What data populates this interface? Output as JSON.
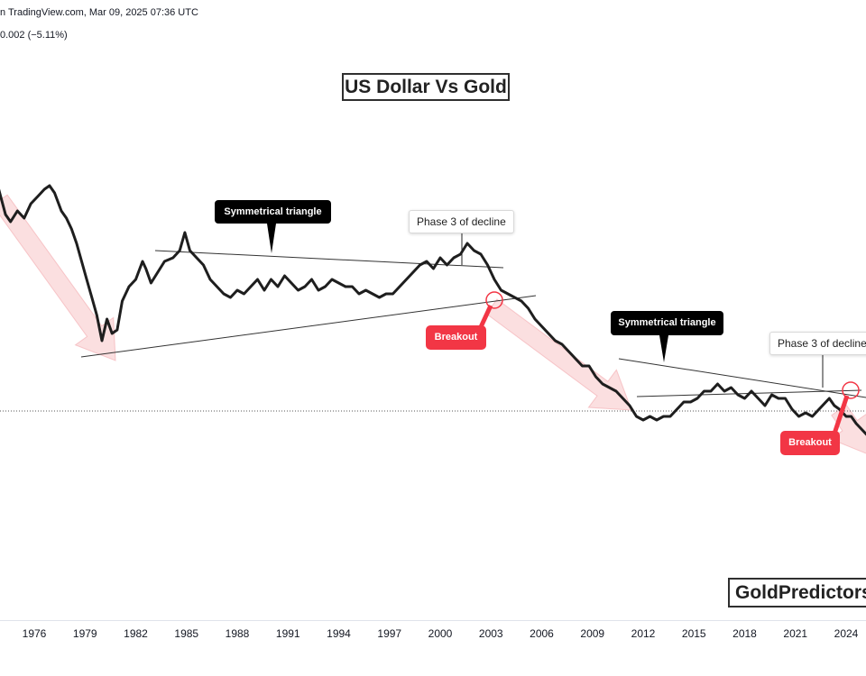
{
  "header": {
    "line1": "n TradingView.com, Mar 09, 2025 07:36 UTC",
    "line2": "0.002 (−5.11%)"
  },
  "title": "US Dollar Vs Gold",
  "brand": "GoldPredictors",
  "annotations": {
    "sym1": "Symmetrical triangle",
    "phase1": "Phase 3 of decline",
    "breakout1": "Breakout",
    "sym2": "Symmetrical triangle",
    "phase2": "Phase 3 of decline",
    "breakout2": "Breakout"
  },
  "colors": {
    "line": "#1e1e1e",
    "arrow": "#f7c5c7",
    "breakout": "#f23645",
    "callout_dark": "#000000",
    "trend": "#333333"
  },
  "chart_data": {
    "type": "line",
    "title": "US Dollar Vs Gold",
    "x_tick_labels": [
      "1976",
      "1979",
      "1982",
      "1985",
      "1988",
      "1991",
      "1994",
      "1997",
      "2000",
      "2003",
      "2006",
      "2009",
      "2012",
      "2015",
      "2018",
      "2021",
      "2024"
    ],
    "xlim": [
      1973.9,
      2025.2
    ],
    "ylim": [
      0,
      1
    ],
    "y_scale_note": "relative (price axis not visible)",
    "series": [
      {
        "values": [
          [
            1973.9,
            0.8
          ],
          [
            1974.3,
            0.73
          ],
          [
            1974.6,
            0.71
          ],
          [
            1975.0,
            0.74
          ],
          [
            1975.4,
            0.72
          ],
          [
            1975.8,
            0.76
          ],
          [
            1976.2,
            0.78
          ],
          [
            1976.6,
            0.8
          ],
          [
            1976.9,
            0.81
          ],
          [
            1977.2,
            0.79
          ],
          [
            1977.6,
            0.74
          ],
          [
            1977.9,
            0.72
          ],
          [
            1978.2,
            0.69
          ],
          [
            1978.5,
            0.65
          ],
          [
            1978.8,
            0.6
          ],
          [
            1979.1,
            0.55
          ],
          [
            1979.4,
            0.5
          ],
          [
            1979.7,
            0.45
          ],
          [
            1980.0,
            0.38
          ],
          [
            1980.3,
            0.44
          ],
          [
            1980.6,
            0.4
          ],
          [
            1980.9,
            0.41
          ],
          [
            1981.2,
            0.49
          ],
          [
            1981.6,
            0.53
          ],
          [
            1982.0,
            0.55
          ],
          [
            1982.4,
            0.6
          ],
          [
            1982.6,
            0.58
          ],
          [
            1982.9,
            0.54
          ],
          [
            1983.3,
            0.57
          ],
          [
            1983.7,
            0.6
          ],
          [
            1984.2,
            0.61
          ],
          [
            1984.6,
            0.63
          ],
          [
            1984.9,
            0.68
          ],
          [
            1985.2,
            0.63
          ],
          [
            1985.6,
            0.61
          ],
          [
            1986.0,
            0.59
          ],
          [
            1986.4,
            0.55
          ],
          [
            1986.8,
            0.53
          ],
          [
            1987.2,
            0.51
          ],
          [
            1987.6,
            0.5
          ],
          [
            1988.0,
            0.52
          ],
          [
            1988.4,
            0.51
          ],
          [
            1988.8,
            0.53
          ],
          [
            1989.2,
            0.55
          ],
          [
            1989.6,
            0.52
          ],
          [
            1990.0,
            0.55
          ],
          [
            1990.4,
            0.53
          ],
          [
            1990.8,
            0.56
          ],
          [
            1991.2,
            0.54
          ],
          [
            1991.6,
            0.52
          ],
          [
            1992.0,
            0.53
          ],
          [
            1992.4,
            0.55
          ],
          [
            1992.8,
            0.52
          ],
          [
            1993.2,
            0.53
          ],
          [
            1993.6,
            0.55
          ],
          [
            1994.0,
            0.54
          ],
          [
            1994.4,
            0.53
          ],
          [
            1994.8,
            0.53
          ],
          [
            1995.2,
            0.51
          ],
          [
            1995.6,
            0.52
          ],
          [
            1996.0,
            0.51
          ],
          [
            1996.4,
            0.5
          ],
          [
            1996.8,
            0.51
          ],
          [
            1997.2,
            0.51
          ],
          [
            1997.6,
            0.53
          ],
          [
            1998.0,
            0.55
          ],
          [
            1998.4,
            0.57
          ],
          [
            1998.8,
            0.59
          ],
          [
            1999.2,
            0.6
          ],
          [
            1999.6,
            0.58
          ],
          [
            2000.0,
            0.61
          ],
          [
            2000.4,
            0.59
          ],
          [
            2000.8,
            0.61
          ],
          [
            2001.2,
            0.62
          ],
          [
            2001.6,
            0.65
          ],
          [
            2002.0,
            0.63
          ],
          [
            2002.4,
            0.62
          ],
          [
            2002.8,
            0.59
          ],
          [
            2003.2,
            0.55
          ],
          [
            2003.6,
            0.52
          ],
          [
            2004.0,
            0.51
          ],
          [
            2004.4,
            0.5
          ],
          [
            2004.8,
            0.49
          ],
          [
            2005.2,
            0.47
          ],
          [
            2005.6,
            0.44
          ],
          [
            2006.0,
            0.42
          ],
          [
            2006.4,
            0.4
          ],
          [
            2006.8,
            0.38
          ],
          [
            2007.2,
            0.37
          ],
          [
            2007.6,
            0.35
          ],
          [
            2008.0,
            0.33
          ],
          [
            2008.4,
            0.31
          ],
          [
            2008.8,
            0.31
          ],
          [
            2009.2,
            0.28
          ],
          [
            2009.6,
            0.26
          ],
          [
            2010.0,
            0.25
          ],
          [
            2010.4,
            0.24
          ],
          [
            2010.8,
            0.22
          ],
          [
            2011.2,
            0.2
          ],
          [
            2011.6,
            0.17
          ],
          [
            2012.0,
            0.16
          ],
          [
            2012.4,
            0.17
          ],
          [
            2012.8,
            0.16
          ],
          [
            2013.2,
            0.17
          ],
          [
            2013.6,
            0.17
          ],
          [
            2014.0,
            0.19
          ],
          [
            2014.4,
            0.21
          ],
          [
            2014.8,
            0.21
          ],
          [
            2015.2,
            0.22
          ],
          [
            2015.6,
            0.24
          ],
          [
            2016.0,
            0.24
          ],
          [
            2016.4,
            0.26
          ],
          [
            2016.8,
            0.24
          ],
          [
            2017.2,
            0.25
          ],
          [
            2017.6,
            0.23
          ],
          [
            2018.0,
            0.22
          ],
          [
            2018.4,
            0.24
          ],
          [
            2018.8,
            0.22
          ],
          [
            2019.2,
            0.2
          ],
          [
            2019.6,
            0.23
          ],
          [
            2020.0,
            0.22
          ],
          [
            2020.4,
            0.22
          ],
          [
            2020.8,
            0.19
          ],
          [
            2021.2,
            0.17
          ],
          [
            2021.6,
            0.18
          ],
          [
            2022.0,
            0.17
          ],
          [
            2022.4,
            0.19
          ],
          [
            2022.8,
            0.21
          ],
          [
            2023.0,
            0.22
          ],
          [
            2023.3,
            0.2
          ],
          [
            2023.6,
            0.19
          ],
          [
            2024.0,
            0.17
          ],
          [
            2024.3,
            0.17
          ],
          [
            2024.6,
            0.15
          ],
          [
            2025.0,
            0.13
          ],
          [
            2025.2,
            0.12
          ]
        ]
      }
    ]
  }
}
